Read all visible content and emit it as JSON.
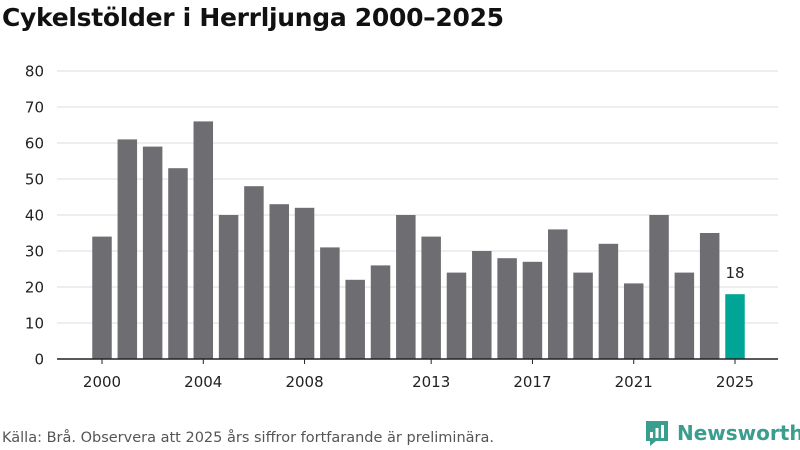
{
  "title": "Cykelstölder i Herrljunga 2000–2025",
  "source": "Källa: Brå. Observera att 2025 års siffror fortfarande är preliminära.",
  "brand": {
    "name": "Newsworthy",
    "icon": "newsworthy-logo-icon",
    "color": "#3a9e8e"
  },
  "chart_data": {
    "type": "bar",
    "title": "Cykelstölder i Herrljunga 2000–2025",
    "xlabel": "",
    "ylabel": "",
    "ylim": [
      0,
      80
    ],
    "yticks": [
      0,
      10,
      20,
      30,
      40,
      50,
      60,
      70,
      80
    ],
    "xtick_labels": [
      "2000",
      "2004",
      "2008",
      "2013",
      "2017",
      "2021",
      "2025"
    ],
    "categories": [
      "2000",
      "2001",
      "2002",
      "2003",
      "2004",
      "2005",
      "2006",
      "2007",
      "2008",
      "2009",
      "2010",
      "2011",
      "2012",
      "2013",
      "2014",
      "2015",
      "2016",
      "2017",
      "2018",
      "2019",
      "2020",
      "2021",
      "2022",
      "2023",
      "2024",
      "2025"
    ],
    "values": [
      34,
      61,
      59,
      53,
      66,
      40,
      48,
      43,
      42,
      31,
      22,
      26,
      40,
      34,
      24,
      30,
      28,
      27,
      36,
      24,
      32,
      21,
      40,
      24,
      35,
      18
    ],
    "highlight": {
      "category": "2025",
      "label": "18"
    },
    "colors": {
      "bar": "#6e6d72",
      "highlight": "#00a595",
      "grid": "#dddddd",
      "axis": "#222222"
    },
    "grid": true
  }
}
